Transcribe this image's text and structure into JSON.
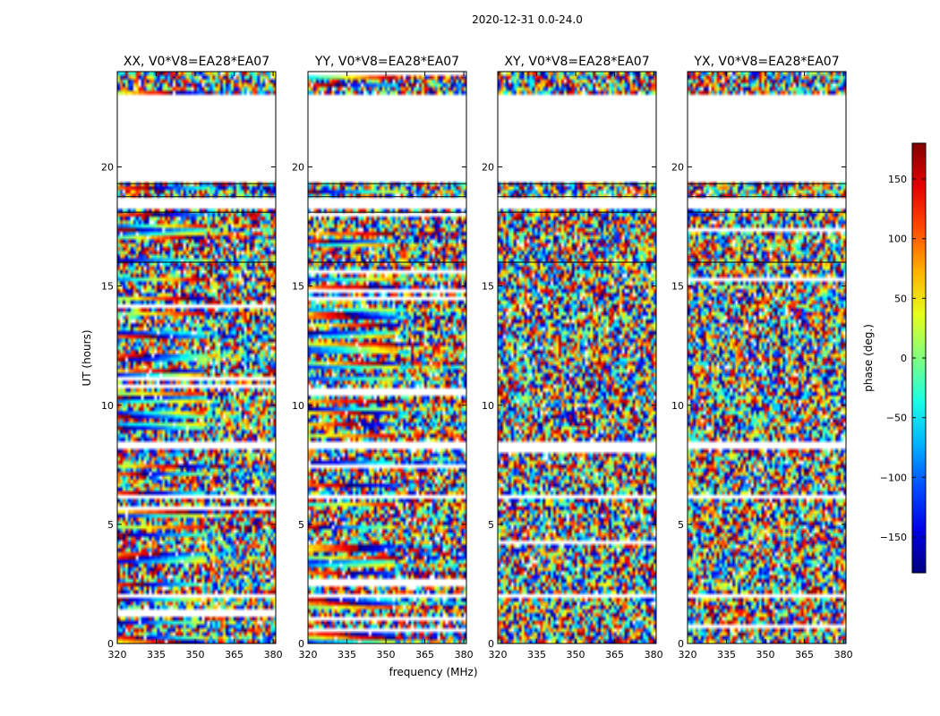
{
  "chart_data": {
    "type": "heatmap",
    "suptitle": "2020-12-31 0.0-24.0",
    "xlabel": "frequency (MHz)",
    "ylabel": "UT (hours)",
    "xlim": [
      320,
      381
    ],
    "ylim": [
      0,
      24
    ],
    "xticks": [
      320,
      335,
      350,
      365,
      380
    ],
    "yticks": [
      0,
      5,
      10,
      15,
      20
    ],
    "panels": [
      {
        "title": "XX, V0*V8=EA28*EA07",
        "pol": "XX",
        "structure": "coherent"
      },
      {
        "title": "YY, V0*V8=EA28*EA07",
        "pol": "YY",
        "structure": "coherent"
      },
      {
        "title": "XY, V0*V8=EA28*EA07",
        "pol": "XY",
        "structure": "noise"
      },
      {
        "title": "YX, V0*V8=EA28*EA07",
        "pol": "YX",
        "structure": "noise"
      }
    ],
    "empty_time_ranges_hours": [
      [
        19.4,
        23.1
      ],
      [
        18.2,
        18.7
      ],
      [
        8.2,
        8.4
      ],
      [
        6.15,
        6.3
      ],
      [
        3.45,
        3.6
      ],
      [
        2.0,
        2.12
      ]
    ],
    "colorbar": {
      "label": "phase (deg.)",
      "min": -180,
      "max": 180,
      "ticks": [
        150,
        100,
        50,
        0,
        -50,
        -100,
        -150
      ],
      "tick_labels": [
        "150",
        "100",
        "50",
        "0",
        "−50",
        "−100",
        "−150"
      ],
      "colormap": "jet"
    }
  }
}
